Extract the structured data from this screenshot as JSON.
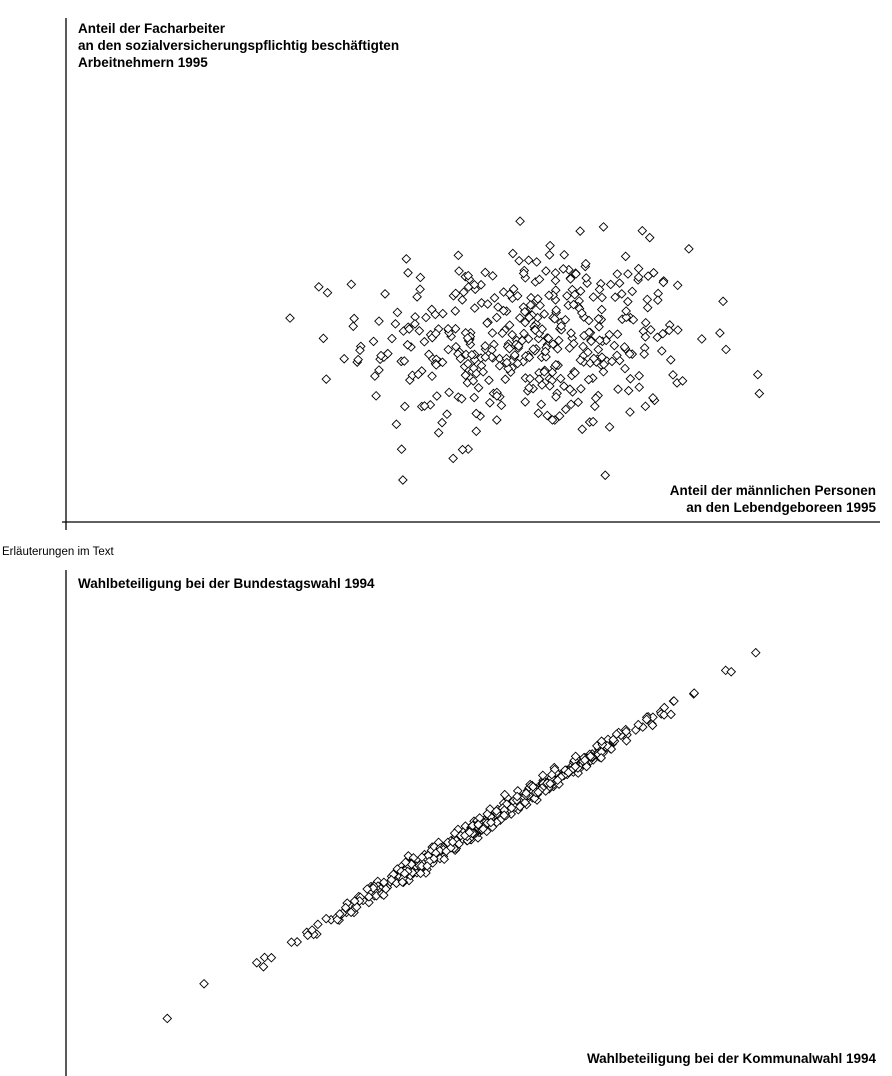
{
  "note": "Erläuterungen im Text",
  "chart_data": [
    {
      "type": "scatter",
      "title": "",
      "ylabel_lines": [
        "Anteil der Facharbeiter",
        "an den sozialversicherungspflichtig beschäftigten",
        "Arbeitnehmern 1995"
      ],
      "xlabel_lines": [
        "Anteil der männlichen Personen",
        "an den Lebendgeboreen 1995"
      ],
      "axes": {
        "ticks": "none",
        "grid": false
      },
      "marker": "diamond",
      "distribution": {
        "pattern": "cloud",
        "n_points": 440,
        "x_mean": 0.5,
        "y_mean": 0.5,
        "x_sd": 0.18,
        "y_sd": 0.17,
        "correlation": 0.0
      },
      "xlim": [
        0,
        1
      ],
      "ylim": [
        0,
        1
      ]
    },
    {
      "type": "scatter",
      "title": "",
      "ylabel_lines": [
        "Wahlbeteiligung bei der Bundestagswahl 1994"
      ],
      "xlabel_lines": [
        "Wahlbeteiligung bei der Kommunalwahl 1994"
      ],
      "axes": {
        "ticks": "none",
        "grid": false
      },
      "marker": "diamond",
      "distribution": {
        "pattern": "linear",
        "n_points": 480,
        "x_mean": 0.55,
        "x_sd": 0.14,
        "slope": 1.0,
        "intercept": 0.0,
        "noise_sd": 0.012,
        "correlation": 0.99
      },
      "outliers": [
        [
          0.02,
          0.03
        ],
        [
          0.08,
          0.12
        ],
        [
          0.98,
          0.98
        ]
      ],
      "xlim": [
        0,
        1
      ],
      "ylim": [
        0,
        1
      ]
    }
  ]
}
